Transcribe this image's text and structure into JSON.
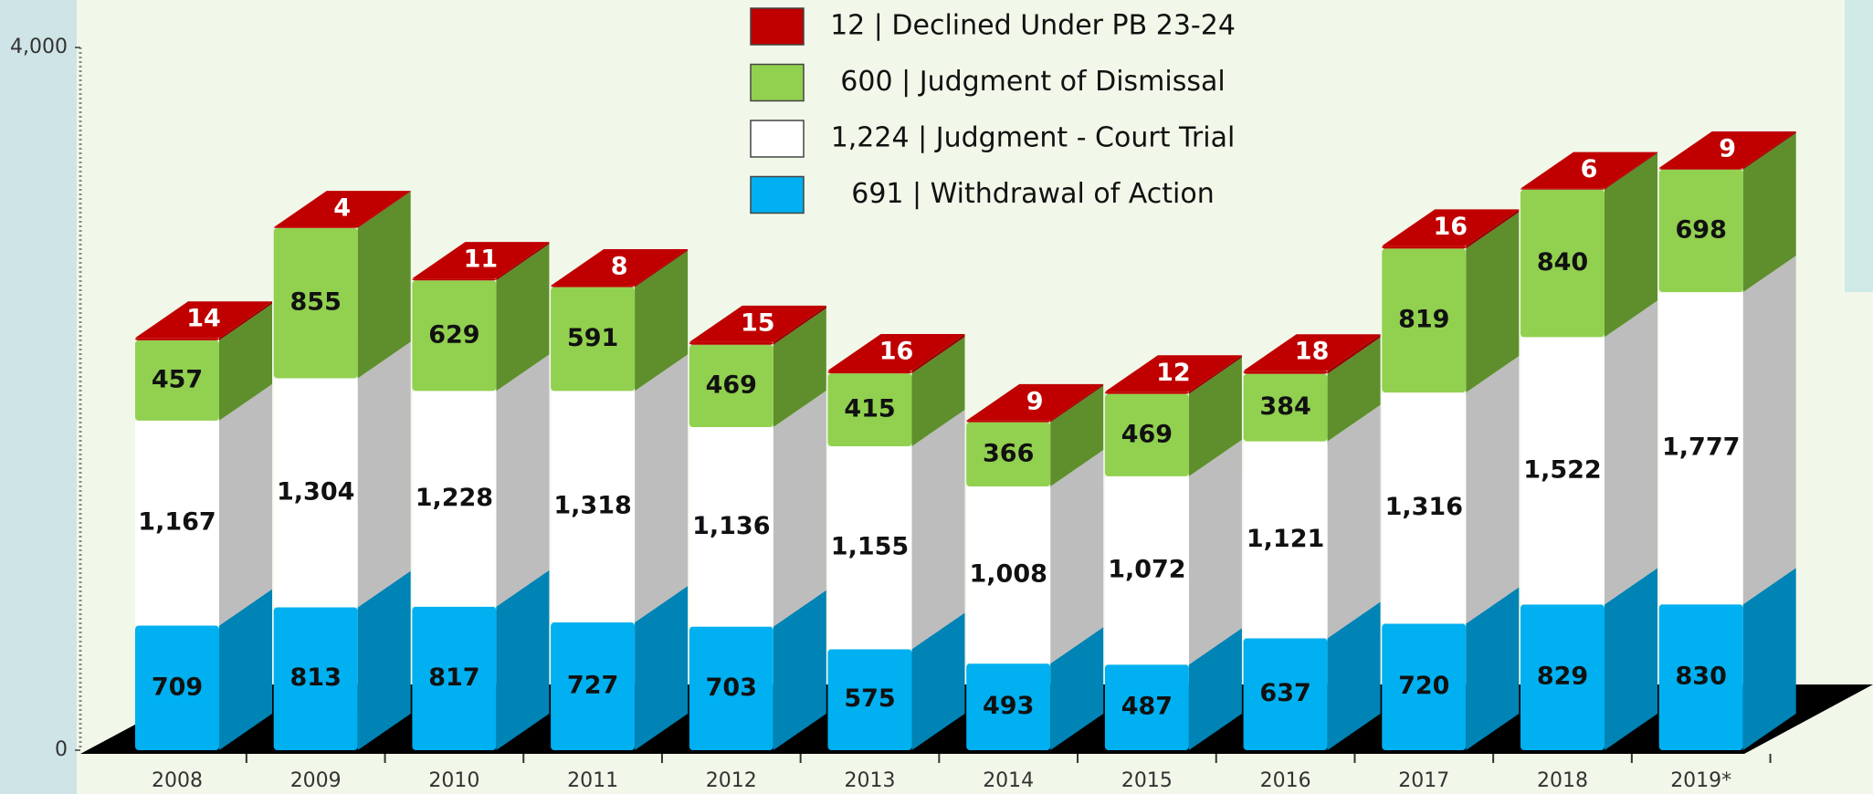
{
  "chart_data": {
    "type": "stacked_bar_3d",
    "categories": [
      "2008",
      "2009",
      "2010",
      "2011",
      "2012",
      "2013",
      "2014",
      "2015",
      "2016",
      "2017",
      "2018",
      "2019*"
    ],
    "series": [
      {
        "name": "691 | Withdrawal of Action",
        "color": "#00b0f0",
        "side_color": "#0083b5",
        "values": [
          709,
          813,
          817,
          727,
          703,
          575,
          493,
          487,
          637,
          720,
          829,
          830
        ]
      },
      {
        "name": "1,224 | Judgment - Court Trial",
        "color": "#ffffff",
        "side_color": "#bdbdbd",
        "values": [
          1167,
          1304,
          1228,
          1318,
          1136,
          1155,
          1008,
          1072,
          1121,
          1316,
          1522,
          1777
        ],
        "value_labels": [
          "1,167",
          "1,304",
          "1,228",
          "1,318",
          "1,136",
          "1,155",
          "1,008",
          "1,072",
          "1,121",
          "1,316",
          "1,522",
          "1,777"
        ]
      },
      {
        "name": "600 | Judgment of Dismissal",
        "color": "#92d050",
        "side_color": "#5e8f2c",
        "values": [
          457,
          855,
          629,
          591,
          469,
          415,
          366,
          469,
          384,
          819,
          840,
          698
        ]
      },
      {
        "name": "12 | Declined Under PB 23-24",
        "color": "#c00000",
        "side_color": "#990000",
        "values": [
          14,
          4,
          11,
          8,
          15,
          16,
          9,
          12,
          18,
          16,
          6,
          9
        ]
      }
    ],
    "ylim": [
      0,
      4000
    ],
    "yticks": [
      0,
      {
        "value": 4000,
        "label": "4,000"
      }
    ]
  }
}
